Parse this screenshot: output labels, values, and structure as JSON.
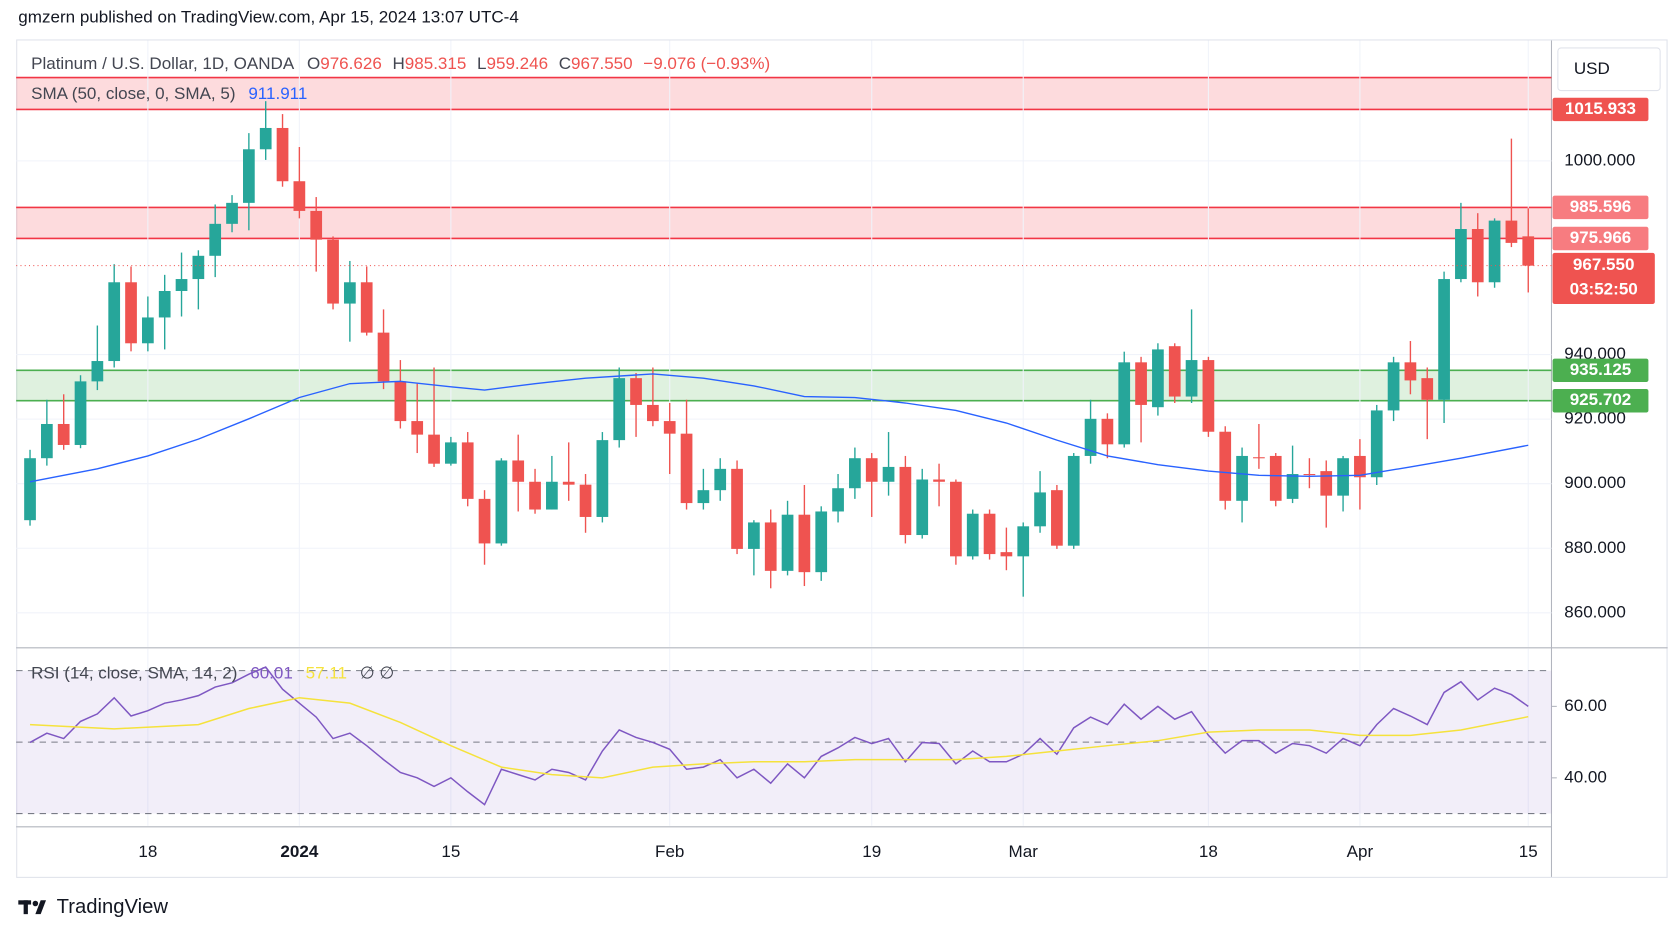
{
  "header": {
    "published": "gmzern published on TradingView.com, Apr 15, 2024 13:07 UTC-4"
  },
  "chart_data": [
    {
      "type": "candlestick",
      "title": "Platinum / U.S. Dollar, 1D, OANDA",
      "currency": "USD",
      "legend_keys": [
        "O",
        "H",
        "L",
        "C"
      ],
      "change_label": "−9.076 (−0.93%)",
      "last_price_label": "967.550",
      "countdown": "03:52:50",
      "categories": [
        null,
        null,
        null,
        null,
        null,
        null,
        null,
        "18",
        null,
        null,
        null,
        null,
        null,
        null,
        null,
        null,
        "2024",
        null,
        null,
        null,
        null,
        null,
        null,
        null,
        null,
        "15",
        null,
        null,
        null,
        null,
        null,
        null,
        null,
        null,
        null,
        null,
        null,
        null,
        "Feb",
        null,
        null,
        null,
        null,
        null,
        null,
        null,
        null,
        null,
        null,
        null,
        "19",
        null,
        null,
        null,
        null,
        null,
        null,
        null,
        null,
        "Mar",
        null,
        null,
        null,
        null,
        null,
        null,
        null,
        null,
        null,
        null,
        "18",
        null,
        null,
        null,
        null,
        null,
        null,
        null,
        null,
        "Apr",
        null,
        null,
        null,
        null,
        null,
        null,
        null,
        null,
        null,
        "15"
      ],
      "open": [
        888.7,
        907.9,
        918.5,
        912,
        931.7,
        938,
        962.4,
        943.5,
        951.5,
        959.7,
        963.4,
        970.6,
        980.5,
        987,
        1003.6,
        1010.2,
        993.7,
        984.5,
        975.6,
        955.8,
        962.4,
        946.8,
        931.7,
        919.4,
        915.2,
        906.2,
        912.8,
        895.3,
        881.5,
        907.2,
        900.6,
        892,
        900.6,
        899.7,
        889.7,
        913.5,
        932.7,
        924.4,
        919.4,
        915.5,
        894,
        898,
        904.6,
        879.8,
        888,
        873,
        890.4,
        872.6,
        891.4,
        898.6,
        907.9,
        900.6,
        905.2,
        884.1,
        901.3,
        900.6,
        877.5,
        890.7,
        878.8,
        877.5,
        886.8,
        898,
        880.8,
        908.6,
        920.1,
        912.2,
        937.6,
        923.7,
        942.6,
        927,
        938.3,
        916.1,
        894.7,
        908.2,
        908.6,
        895.3,
        903,
        903.9,
        896.3,
        908.6,
        902,
        922.7,
        937.6,
        932.7,
        926,
        963.4,
        978.9,
        962.4,
        981.5,
        976.626
      ],
      "high": [
        910.5,
        926,
        927.7,
        933.6,
        949,
        968,
        967.3,
        958,
        964.7,
        971.6,
        972.3,
        986.5,
        989.4,
        1008.6,
        1018.5,
        1014.5,
        1004.3,
        988.8,
        976.6,
        969,
        967.3,
        954,
        938.3,
        931,
        936,
        914.5,
        916,
        898,
        907.9,
        915.2,
        904.6,
        908.6,
        912.8,
        903,
        916,
        936,
        934.3,
        936,
        925,
        926,
        904.6,
        907.9,
        907.2,
        888.7,
        892,
        894.7,
        899.6,
        893,
        903,
        911.2,
        909.5,
        916,
        908.6,
        904.6,
        906.2,
        901.3,
        892,
        892,
        886.4,
        888,
        903.9,
        899.6,
        909.5,
        926,
        921.8,
        940.9,
        939.3,
        943.5,
        943.5,
        954,
        939.3,
        917.8,
        911.2,
        918.5,
        909.5,
        911.8,
        907.9,
        907.2,
        908.6,
        913.8,
        924.4,
        939.3,
        944.2,
        936,
        965.7,
        987,
        983.8,
        982.2,
        1006.9,
        985.315
      ],
      "low": [
        887,
        905.6,
        910.5,
        911,
        929,
        936,
        941,
        941,
        941.6,
        951.8,
        954,
        964,
        977.9,
        978.5,
        1000.3,
        992,
        982.2,
        965.7,
        954,
        944,
        945.9,
        929.3,
        917.1,
        909.5,
        905.2,
        905.6,
        893,
        874.9,
        880.8,
        891.4,
        890.7,
        892,
        894.7,
        884.8,
        888,
        911.2,
        914.5,
        917.8,
        903,
        892,
        892,
        894.7,
        878.2,
        871.6,
        867.6,
        871.6,
        868.3,
        869.9,
        888,
        895.3,
        889.7,
        896.3,
        881.5,
        883,
        893,
        874.9,
        876.5,
        876.5,
        873.2,
        865,
        884.8,
        879.8,
        879.8,
        906.2,
        907.9,
        911.2,
        912.8,
        921.1,
        925,
        925,
        914.5,
        892,
        888,
        904.6,
        893,
        894,
        898.6,
        886.4,
        891.4,
        892,
        899.6,
        919.4,
        927.7,
        913.8,
        918.8,
        962.4,
        958,
        960.7,
        973.3,
        959.246
      ],
      "close": [
        907.9,
        918.5,
        912,
        931.7,
        938,
        962.4,
        943.5,
        951.5,
        959.7,
        963.4,
        970.6,
        980.5,
        987,
        1003.6,
        1010.2,
        993.7,
        984.5,
        975.6,
        955.8,
        962.4,
        946.8,
        931.7,
        919.4,
        915.2,
        906.2,
        912.8,
        895.3,
        881.5,
        907.2,
        900.6,
        892,
        900.6,
        899.7,
        889.7,
        913.5,
        932.7,
        924.4,
        919.4,
        915.5,
        894,
        898,
        904.6,
        879.8,
        888,
        873,
        890.4,
        872.6,
        891.4,
        898.6,
        907.9,
        900.6,
        905.2,
        884.1,
        901.3,
        900.6,
        877.5,
        890.7,
        878.2,
        877.5,
        886.8,
        897.3,
        880.8,
        908.6,
        920.1,
        912.2,
        937.6,
        924.4,
        941.6,
        927,
        938.3,
        916.1,
        894.7,
        908.6,
        907.9,
        894.7,
        903,
        902.9,
        896.3,
        907.9,
        902,
        922.7,
        937.6,
        932,
        926,
        963.4,
        978.9,
        962.4,
        981.5,
        974.6,
        967.55
      ],
      "up_color": "#26a69a",
      "down_color": "#ef5350",
      "ylim": [
        849.5,
        1037.3
      ],
      "yticks": [
        {
          "value": 860,
          "label": "860.000"
        },
        {
          "value": 880,
          "label": "880.000"
        },
        {
          "value": 900,
          "label": "900.000"
        },
        {
          "value": 920,
          "label": "920.000"
        },
        {
          "value": 940,
          "label": "940.000"
        },
        {
          "value": 1000,
          "label": "1000.000"
        }
      ],
      "grid": true,
      "sma": {
        "name": "SMA (50, close, 0, SMA, 5)",
        "color": "#2962ff",
        "x": [
          0,
          4,
          7,
          10,
          13,
          16,
          19,
          22,
          25,
          27,
          30,
          33,
          37,
          40,
          43,
          46,
          49,
          52,
          55,
          58,
          61,
          64,
          67,
          70,
          73,
          76,
          79,
          82,
          85,
          89
        ],
        "values": [
          900.6,
          904.6,
          908.6,
          913.8,
          920.1,
          926.7,
          931,
          931.7,
          930,
          929,
          931,
          932.7,
          934,
          932.7,
          930.3,
          927,
          926.7,
          925,
          922.7,
          918.8,
          913.5,
          908.6,
          905.9,
          903.9,
          902.6,
          902.3,
          902.6,
          905.2,
          907.9,
          911.911
        ]
      },
      "zones": [
        {
          "top": 1025.8,
          "bottom": 1015.933,
          "color": "#f23645",
          "tag_color": "#ef5350",
          "tags": [
            "bottom"
          ]
        },
        {
          "top": 985.596,
          "bottom": 975.966,
          "color": "#f23645",
          "tag_color": "#f77c80",
          "tags": [
            "top",
            "bottom"
          ]
        },
        {
          "top": 935.125,
          "bottom": 925.702,
          "color": "#4caf50",
          "tag_color": "#4caf50",
          "tags": [
            "top",
            "bottom"
          ]
        }
      ]
    },
    {
      "type": "line",
      "title": "RSI (14, close, SMA, 14, 2)",
      "extra": "∅ ∅",
      "ylim": [
        26.6,
        75.8
      ],
      "yticks": [
        {
          "value": 40,
          "label": "40.00"
        },
        {
          "value": 60,
          "label": "60.00"
        }
      ],
      "bands": [
        70,
        50,
        30
      ],
      "band_color": "#7e57c2",
      "series": [
        {
          "color": "#7e57c2",
          "values": [
            49.9,
            52.5,
            51,
            55.8,
            57.9,
            62.4,
            57.3,
            58.8,
            60.9,
            61.8,
            63,
            65.4,
            66.6,
            69,
            71,
            64.8,
            60.9,
            57,
            51,
            52.5,
            49,
            45.1,
            41.5,
            40,
            37.6,
            40,
            36.1,
            32.5,
            42.4,
            40.9,
            39.4,
            42.4,
            41.5,
            39.4,
            47.5,
            53.4,
            51.3,
            49.9,
            48,
            42.4,
            43,
            45.1,
            40,
            42.4,
            38.5,
            43.9,
            40,
            46,
            48.4,
            51.3,
            49.6,
            51,
            44.5,
            49.9,
            49.6,
            43.9,
            47.5,
            44.5,
            44.5,
            46.6,
            51,
            46.6,
            54,
            57,
            54.9,
            60.6,
            56.4,
            60,
            56.4,
            58.5,
            51.9,
            46.9,
            50.4,
            50.4,
            46.9,
            49.6,
            49,
            46.9,
            51,
            49,
            54.9,
            59.4,
            57.3,
            54.9,
            63.9,
            66.9,
            61.8,
            65.1,
            63.3,
            60.01
          ]
        },
        {
          "color": "#f5e23c",
          "x": [
            0,
            5,
            10,
            13,
            16,
            19,
            22,
            25,
            28,
            31,
            34,
            37,
            40,
            43,
            46,
            49,
            52,
            55,
            58,
            61,
            64,
            67,
            70,
            73,
            76,
            79,
            82,
            85,
            89
          ],
          "values": [
            54.9,
            53.7,
            54.9,
            59.4,
            62.4,
            60.9,
            55.5,
            49,
            43,
            40.9,
            40,
            43,
            43.9,
            44.5,
            44.5,
            45.1,
            45.1,
            45.1,
            46,
            47.5,
            49,
            50.4,
            52.8,
            53.4,
            53.4,
            51.9,
            51.9,
            53.4,
            57.11
          ]
        }
      ]
    }
  ],
  "footer": {
    "brand": "TradingView"
  }
}
